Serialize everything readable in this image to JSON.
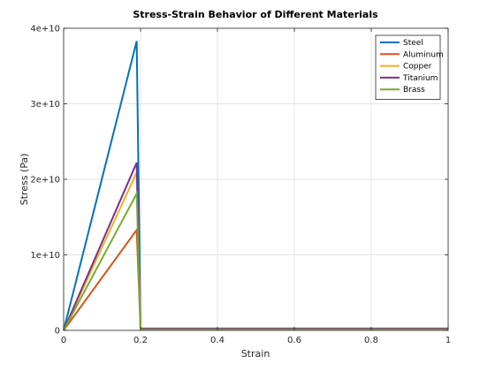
{
  "chart_data": {
    "type": "line",
    "title": "Stress-Strain Behavior of Different Materials",
    "xlabel": "Strain",
    "ylabel": "Stress (Pa)",
    "xlim": [
      0,
      1
    ],
    "ylim": [
      0,
      40000000000
    ],
    "xticks": [
      0,
      0.2,
      0.4,
      0.6,
      0.8,
      1
    ],
    "xtick_labels": [
      "0",
      "0.2",
      "0.4",
      "0.6",
      "0.8",
      "1"
    ],
    "yticks": [
      0,
      10000000000,
      20000000000,
      30000000000,
      40000000000
    ],
    "ytick_labels": [
      "0",
      "1e+10",
      "2e+10",
      "3e+10",
      "4e+10"
    ],
    "grid": true,
    "legend_position": "top-right",
    "series": [
      {
        "name": "Steel",
        "color": "#0072BD",
        "points": [
          [
            0,
            0
          ],
          [
            0.19,
            38300000000
          ],
          [
            0.2,
            250000000
          ],
          [
            1,
            250000000
          ]
        ]
      },
      {
        "name": "Aluminum",
        "color": "#D95319",
        "points": [
          [
            0,
            0
          ],
          [
            0.19,
            13300000000
          ],
          [
            0.2,
            200000000
          ],
          [
            1,
            200000000
          ]
        ]
      },
      {
        "name": "Copper",
        "color": "#EDB120",
        "points": [
          [
            0,
            0
          ],
          [
            0.19,
            20900000000
          ],
          [
            0.2,
            150000000
          ],
          [
            1,
            150000000
          ]
        ]
      },
      {
        "name": "Titanium",
        "color": "#7E2F8E",
        "points": [
          [
            0,
            0
          ],
          [
            0.19,
            22200000000
          ],
          [
            0.2,
            220000000
          ],
          [
            1,
            220000000
          ]
        ]
      },
      {
        "name": "Brass",
        "color": "#77AC30",
        "points": [
          [
            0,
            0
          ],
          [
            0.19,
            18100000000
          ],
          [
            0.2,
            120000000
          ],
          [
            1,
            120000000
          ]
        ]
      }
    ]
  }
}
